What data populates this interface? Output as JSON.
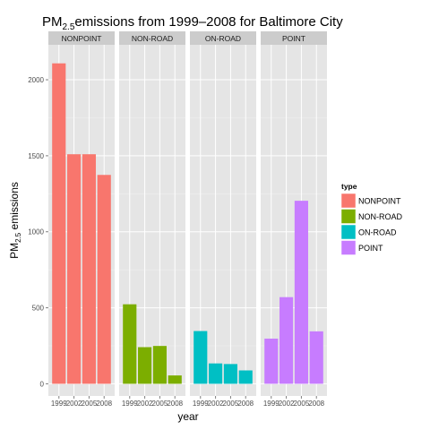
{
  "chart_data": {
    "type": "bar",
    "title": {
      "prefix": "PM",
      "subscript": "2.5",
      "suffix": "emissions from 1999–2008 for Baltimore City"
    },
    "xlabel": "year",
    "ylabel": {
      "prefix": "PM",
      "subscript": "2.5",
      "suffix": " emissions"
    },
    "categories": [
      "1999",
      "2002",
      "2005",
      "2008"
    ],
    "ylim": [
      -80,
      2230
    ],
    "yticks": [
      0,
      500,
      1000,
      1500,
      2000
    ],
    "ytick_labels": [
      "0",
      "500",
      "1000",
      "1500",
      "2000"
    ],
    "grid": true,
    "legend_position": "right",
    "legend_title": "type",
    "facets": [
      {
        "name": "NONPOINT",
        "color": "#f8766d",
        "values": [
          2108,
          1510,
          1510,
          1374
        ]
      },
      {
        "name": "NON-ROAD",
        "color": "#7cae00",
        "values": [
          523,
          241,
          249,
          55
        ]
      },
      {
        "name": "ON-ROAD",
        "color": "#00bfc4",
        "values": [
          347,
          134,
          130,
          88
        ]
      },
      {
        "name": "POINT",
        "color": "#c77cff",
        "values": [
          297,
          570,
          1204,
          345
        ]
      }
    ]
  }
}
